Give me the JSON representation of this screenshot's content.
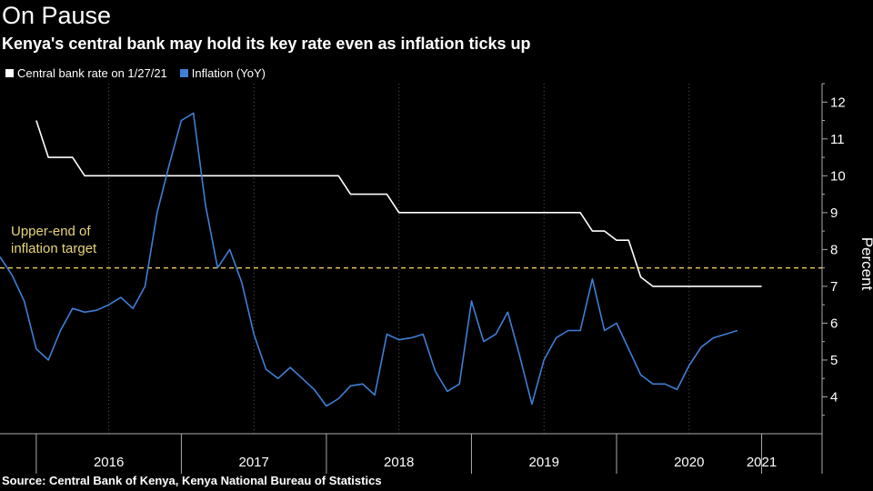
{
  "title": "On Pause",
  "subtitle": "Kenya's central bank may hold its key rate even as inflation ticks up",
  "source": "Source: Central Bank of Kenya, Kenya National Bureau of Statistics",
  "colors": {
    "policy": "#ffffff",
    "inflation": "#3f7fd6",
    "target": "#e8c35a"
  },
  "chart_data": {
    "type": "line",
    "ylabel": "Percent",
    "ylim": [
      3,
      12.5
    ],
    "yticks": [
      4,
      5,
      6,
      7,
      8,
      9,
      10,
      11,
      12
    ],
    "xlim": [
      "2015-10",
      "2021-06"
    ],
    "year_labels": [
      {
        "label": "2016",
        "at": "2016-07"
      },
      {
        "label": "2017",
        "at": "2017-07"
      },
      {
        "label": "2018",
        "at": "2018-07"
      },
      {
        "label": "2019",
        "at": "2019-07"
      },
      {
        "label": "2020",
        "at": "2020-07"
      },
      {
        "label": "2021",
        "at": "2021-01"
      }
    ],
    "year_boundaries": [
      "2016-01",
      "2017-01",
      "2018-01",
      "2019-01",
      "2020-01",
      "2021-01"
    ],
    "threshold": {
      "value": 7.5,
      "label_lines": [
        "Upper-end of",
        "inflation target"
      ]
    },
    "series": [
      {
        "name": "Central bank rate on 1/27/21",
        "step": true,
        "points": [
          [
            "2016-01",
            11.5
          ],
          [
            "2016-02",
            10.5
          ],
          [
            "2016-03",
            10.5
          ],
          [
            "2016-04",
            10.5
          ],
          [
            "2016-05",
            10.0
          ],
          [
            "2016-06",
            10.0
          ],
          [
            "2016-07",
            10.0
          ],
          [
            "2016-08",
            10.0
          ],
          [
            "2016-09",
            10.0
          ],
          [
            "2016-10",
            10.0
          ],
          [
            "2016-11",
            10.0
          ],
          [
            "2016-12",
            10.0
          ],
          [
            "2017-01",
            10.0
          ],
          [
            "2017-02",
            10.0
          ],
          [
            "2017-03",
            10.0
          ],
          [
            "2017-04",
            10.0
          ],
          [
            "2017-05",
            10.0
          ],
          [
            "2017-06",
            10.0
          ],
          [
            "2017-07",
            10.0
          ],
          [
            "2017-08",
            10.0
          ],
          [
            "2017-09",
            10.0
          ],
          [
            "2017-10",
            10.0
          ],
          [
            "2017-11",
            10.0
          ],
          [
            "2017-12",
            10.0
          ],
          [
            "2018-01",
            10.0
          ],
          [
            "2018-02",
            10.0
          ],
          [
            "2018-03",
            9.5
          ],
          [
            "2018-04",
            9.5
          ],
          [
            "2018-05",
            9.5
          ],
          [
            "2018-06",
            9.5
          ],
          [
            "2018-07",
            9.0
          ],
          [
            "2018-08",
            9.0
          ],
          [
            "2018-09",
            9.0
          ],
          [
            "2018-10",
            9.0
          ],
          [
            "2018-11",
            9.0
          ],
          [
            "2018-12",
            9.0
          ],
          [
            "2019-01",
            9.0
          ],
          [
            "2019-02",
            9.0
          ],
          [
            "2019-03",
            9.0
          ],
          [
            "2019-04",
            9.0
          ],
          [
            "2019-05",
            9.0
          ],
          [
            "2019-06",
            9.0
          ],
          [
            "2019-07",
            9.0
          ],
          [
            "2019-08",
            9.0
          ],
          [
            "2019-09",
            9.0
          ],
          [
            "2019-10",
            9.0
          ],
          [
            "2019-11",
            8.5
          ],
          [
            "2019-12",
            8.5
          ],
          [
            "2020-01",
            8.25
          ],
          [
            "2020-02",
            8.25
          ],
          [
            "2020-03",
            7.25
          ],
          [
            "2020-04",
            7.0
          ],
          [
            "2020-05",
            7.0
          ],
          [
            "2020-06",
            7.0
          ],
          [
            "2020-07",
            7.0
          ],
          [
            "2020-08",
            7.0
          ],
          [
            "2020-09",
            7.0
          ],
          [
            "2020-10",
            7.0
          ],
          [
            "2020-11",
            7.0
          ],
          [
            "2020-12",
            7.0
          ],
          [
            "2021-01",
            7.0
          ]
        ]
      },
      {
        "name": "Inflation (YoY)",
        "points": [
          [
            "2015-10",
            7.8
          ],
          [
            "2015-11",
            7.3
          ],
          [
            "2015-12",
            6.6
          ],
          [
            "2016-01",
            5.3
          ],
          [
            "2016-02",
            5.0
          ],
          [
            "2016-03",
            5.8
          ],
          [
            "2016-04",
            6.4
          ],
          [
            "2016-05",
            6.3
          ],
          [
            "2016-06",
            6.35
          ],
          [
            "2016-07",
            6.5
          ],
          [
            "2016-08",
            6.7
          ],
          [
            "2016-09",
            6.4
          ],
          [
            "2016-10",
            7.0
          ],
          [
            "2016-11",
            9.0
          ],
          [
            "2016-12",
            10.3
          ],
          [
            "2017-01",
            11.5
          ],
          [
            "2017-02",
            11.7
          ],
          [
            "2017-03",
            9.2
          ],
          [
            "2017-04",
            7.5
          ],
          [
            "2017-05",
            8.0
          ],
          [
            "2017-06",
            7.1
          ],
          [
            "2017-07",
            5.7
          ],
          [
            "2017-08",
            4.75
          ],
          [
            "2017-09",
            4.5
          ],
          [
            "2017-10",
            4.8
          ],
          [
            "2017-11",
            4.5
          ],
          [
            "2017-12",
            4.2
          ],
          [
            "2018-01",
            3.75
          ],
          [
            "2018-02",
            3.95
          ],
          [
            "2018-03",
            4.3
          ],
          [
            "2018-04",
            4.35
          ],
          [
            "2018-05",
            4.05
          ],
          [
            "2018-06",
            5.7
          ],
          [
            "2018-07",
            5.55
          ],
          [
            "2018-08",
            5.6
          ],
          [
            "2018-09",
            5.7
          ],
          [
            "2018-10",
            4.7
          ],
          [
            "2018-11",
            4.15
          ],
          [
            "2018-12",
            4.35
          ],
          [
            "2019-01",
            6.6
          ],
          [
            "2019-02",
            5.5
          ],
          [
            "2019-03",
            5.7
          ],
          [
            "2019-04",
            6.3
          ],
          [
            "2019-05",
            5.1
          ],
          [
            "2019-06",
            3.8
          ],
          [
            "2019-07",
            5.0
          ],
          [
            "2019-08",
            5.6
          ],
          [
            "2019-09",
            5.8
          ],
          [
            "2019-10",
            5.8
          ],
          [
            "2019-11",
            7.2
          ],
          [
            "2019-12",
            5.8
          ],
          [
            "2020-01",
            6.0
          ],
          [
            "2020-02",
            5.3
          ],
          [
            "2020-03",
            4.6
          ],
          [
            "2020-04",
            4.35
          ],
          [
            "2020-05",
            4.35
          ],
          [
            "2020-06",
            4.2
          ],
          [
            "2020-07",
            4.85
          ],
          [
            "2020-08",
            5.35
          ],
          [
            "2020-09",
            5.6
          ],
          [
            "2020-10",
            5.7
          ],
          [
            "2020-11",
            5.8
          ]
        ]
      }
    ]
  }
}
